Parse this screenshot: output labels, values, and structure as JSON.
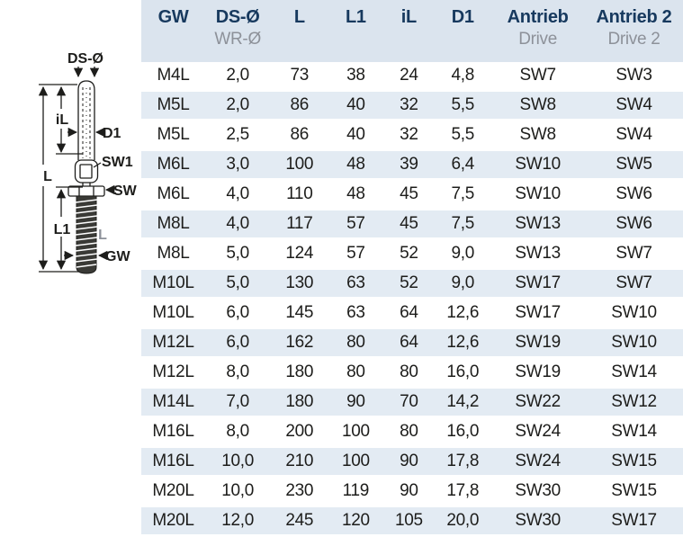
{
  "colors": {
    "header_bg": "#dbe4ee",
    "row_alt_bg": "#e3ebf3",
    "header_text": "#17395e",
    "sub_text": "#8d9199",
    "body_text": "#1d1d1b"
  },
  "diagram": {
    "labels": {
      "ds_o": "DS-Ø",
      "il": "iL",
      "d1": "D1",
      "sw1": "SW1",
      "l_overall": "L",
      "sw": "SW",
      "l1": "L1",
      "l_thread": "L",
      "gw": "GW"
    }
  },
  "table": {
    "columns": [
      {
        "label": "GW",
        "sub": ""
      },
      {
        "label": "DS-Ø",
        "sub": "WR-Ø"
      },
      {
        "label": "L",
        "sub": ""
      },
      {
        "label": "L1",
        "sub": ""
      },
      {
        "label": "iL",
        "sub": ""
      },
      {
        "label": "D1",
        "sub": ""
      },
      {
        "label": "Antrieb",
        "sub": "Drive"
      },
      {
        "label": "Antrieb 2",
        "sub": "Drive 2"
      }
    ],
    "rows": [
      [
        "M4L",
        "2,0",
        "73",
        "38",
        "24",
        "4,8",
        "SW7",
        "SW3"
      ],
      [
        "M5L",
        "2,0",
        "86",
        "40",
        "32",
        "5,5",
        "SW8",
        "SW4"
      ],
      [
        "M5L",
        "2,5",
        "86",
        "40",
        "32",
        "5,5",
        "SW8",
        "SW4"
      ],
      [
        "M6L",
        "3,0",
        "100",
        "48",
        "39",
        "6,4",
        "SW10",
        "SW5"
      ],
      [
        "M6L",
        "4,0",
        "110",
        "48",
        "45",
        "7,5",
        "SW10",
        "SW6"
      ],
      [
        "M8L",
        "4,0",
        "117",
        "57",
        "45",
        "7,5",
        "SW13",
        "SW6"
      ],
      [
        "M8L",
        "5,0",
        "124",
        "57",
        "52",
        "9,0",
        "SW13",
        "SW7"
      ],
      [
        "M10L",
        "5,0",
        "130",
        "63",
        "52",
        "9,0",
        "SW17",
        "SW7"
      ],
      [
        "M10L",
        "6,0",
        "145",
        "63",
        "64",
        "12,6",
        "SW17",
        "SW10"
      ],
      [
        "M12L",
        "6,0",
        "162",
        "80",
        "64",
        "12,6",
        "SW19",
        "SW10"
      ],
      [
        "M12L",
        "8,0",
        "180",
        "80",
        "80",
        "16,0",
        "SW19",
        "SW14"
      ],
      [
        "M14L",
        "7,0",
        "180",
        "90",
        "70",
        "14,2",
        "SW22",
        "SW12"
      ],
      [
        "M16L",
        "8,0",
        "200",
        "100",
        "80",
        "16,0",
        "SW24",
        "SW14"
      ],
      [
        "M16L",
        "10,0",
        "210",
        "100",
        "90",
        "17,8",
        "SW24",
        "SW15"
      ],
      [
        "M20L",
        "10,0",
        "230",
        "119",
        "90",
        "17,8",
        "SW30",
        "SW15"
      ],
      [
        "M20L",
        "12,0",
        "245",
        "120",
        "105",
        "20,0",
        "SW30",
        "SW17"
      ]
    ]
  }
}
